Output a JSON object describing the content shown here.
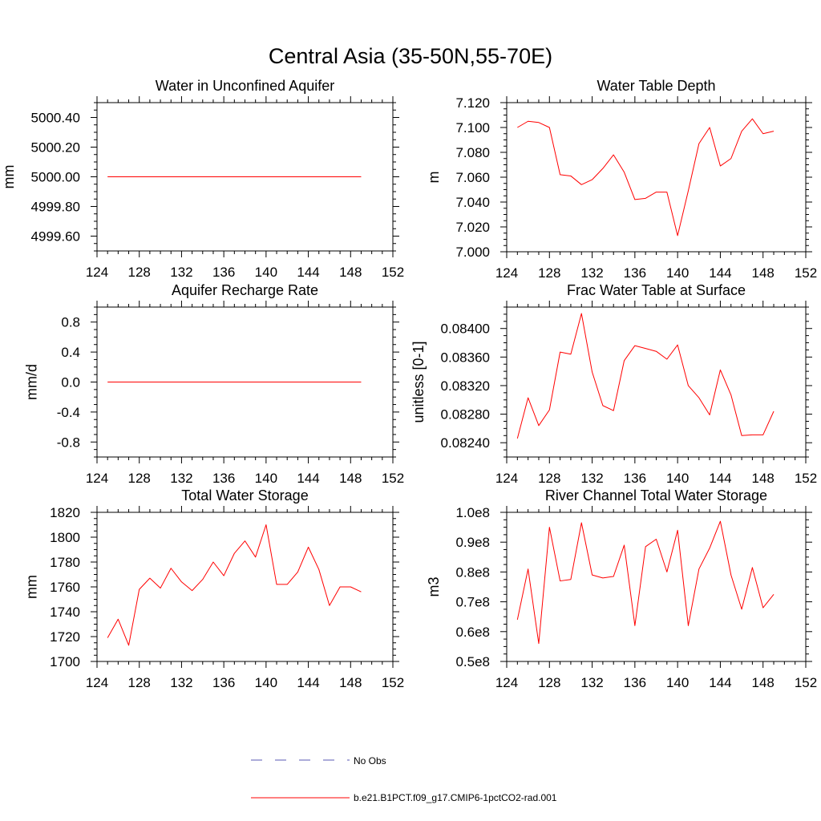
{
  "figure_title": "Central Asia (35-50N,55-70E)",
  "legend": [
    {
      "label": "No Obs",
      "color": "#5a5ab4",
      "style": "dashed"
    },
    {
      "label": "b.e21.B1PCT.f09_g17.CMIP6-1pctCO2-rad.001",
      "color": "#ff0000",
      "style": "solid"
    }
  ],
  "chart_data": [
    {
      "type": "line",
      "title": "Water in Unconfined Aquifer",
      "xlabel": "",
      "ylabel": "mm",
      "xlim": [
        124,
        152
      ],
      "ylim": [
        4999.5,
        5000.5
      ],
      "xticks": [
        124,
        128,
        132,
        136,
        140,
        144,
        148,
        152
      ],
      "yticks": [
        4999.6,
        4999.8,
        5000.0,
        5000.2,
        5000.4
      ],
      "ytick_labels": [
        "4999.60",
        "4999.80",
        "5000.00",
        "5000.20",
        "5000.40"
      ],
      "x": [
        125,
        126,
        127,
        128,
        129,
        130,
        131,
        132,
        133,
        134,
        135,
        136,
        137,
        138,
        139,
        140,
        141,
        142,
        143,
        144,
        145,
        146,
        147,
        148,
        149
      ],
      "series": [
        {
          "color": "#ff0000",
          "values": [
            5000,
            5000,
            5000,
            5000,
            5000,
            5000,
            5000,
            5000,
            5000,
            5000,
            5000,
            5000,
            5000,
            5000,
            5000,
            5000,
            5000,
            5000,
            5000,
            5000,
            5000,
            5000,
            5000,
            5000,
            5000
          ]
        }
      ]
    },
    {
      "type": "line",
      "title": "Water Table Depth",
      "xlabel": "",
      "ylabel": "m",
      "xlim": [
        124,
        152
      ],
      "ylim": [
        7.0,
        7.12
      ],
      "xticks": [
        124,
        128,
        132,
        136,
        140,
        144,
        148,
        152
      ],
      "yticks": [
        7.0,
        7.02,
        7.04,
        7.06,
        7.08,
        7.1,
        7.12
      ],
      "ytick_labels": [
        "7.000",
        "7.020",
        "7.040",
        "7.060",
        "7.080",
        "7.100",
        "7.120"
      ],
      "x": [
        125,
        126,
        127,
        128,
        129,
        130,
        131,
        132,
        133,
        134,
        135,
        136,
        137,
        138,
        139,
        140,
        141,
        142,
        143,
        144,
        145,
        146,
        147,
        148,
        149
      ],
      "series": [
        {
          "color": "#ff0000",
          "values": [
            7.1,
            7.105,
            7.104,
            7.1,
            7.062,
            7.061,
            7.054,
            7.058,
            7.067,
            7.078,
            7.064,
            7.042,
            7.043,
            7.048,
            7.048,
            7.013,
            7.049,
            7.087,
            7.1,
            7.069,
            7.075,
            7.097,
            7.107,
            7.095,
            7.097
          ]
        }
      ]
    },
    {
      "type": "line",
      "title": "Aquifer Recharge Rate",
      "xlabel": "",
      "ylabel": "mm/d",
      "xlim": [
        124,
        152
      ],
      "ylim": [
        -1.0,
        1.0
      ],
      "xticks": [
        124,
        128,
        132,
        136,
        140,
        144,
        148,
        152
      ],
      "yticks": [
        -0.8,
        -0.4,
        0.0,
        0.4,
        0.8
      ],
      "ytick_labels": [
        "-0.8",
        "-0.4",
        "0.0",
        "0.4",
        "0.8"
      ],
      "x": [
        125,
        126,
        127,
        128,
        129,
        130,
        131,
        132,
        133,
        134,
        135,
        136,
        137,
        138,
        139,
        140,
        141,
        142,
        143,
        144,
        145,
        146,
        147,
        148,
        149
      ],
      "series": [
        {
          "color": "#ff0000",
          "values": [
            0,
            0,
            0,
            0,
            0,
            0,
            0,
            0,
            0,
            0,
            0,
            0,
            0,
            0,
            0,
            0,
            0,
            0,
            0,
            0,
            0,
            0,
            0,
            0,
            0
          ]
        }
      ]
    },
    {
      "type": "line",
      "title": "Frac Water Table at Surface",
      "xlabel": "",
      "ylabel": "unitless [0-1]",
      "xlim": [
        124,
        152
      ],
      "ylim": [
        0.0822,
        0.0843
      ],
      "xticks": [
        124,
        128,
        132,
        136,
        140,
        144,
        148,
        152
      ],
      "yticks": [
        0.0824,
        0.0828,
        0.0832,
        0.0836,
        0.084
      ],
      "ytick_labels": [
        "0.08240",
        "0.08280",
        "0.08320",
        "0.08360",
        "0.08400"
      ],
      "x": [
        125,
        126,
        127,
        128,
        129,
        130,
        131,
        132,
        133,
        134,
        135,
        136,
        137,
        138,
        139,
        140,
        141,
        142,
        143,
        144,
        145,
        146,
        147,
        148,
        149
      ],
      "series": [
        {
          "color": "#ff0000",
          "values": [
            0.08246,
            0.08303,
            0.08264,
            0.08286,
            0.08367,
            0.08364,
            0.08421,
            0.08339,
            0.08292,
            0.08285,
            0.08355,
            0.08376,
            0.08372,
            0.08368,
            0.08357,
            0.08377,
            0.0832,
            0.08303,
            0.08279,
            0.08342,
            0.08307,
            0.0825,
            0.08251,
            0.08251,
            0.08284
          ]
        }
      ]
    },
    {
      "type": "line",
      "title": "Total Water Storage",
      "xlabel": "",
      "ylabel": "mm",
      "xlim": [
        124,
        152
      ],
      "ylim": [
        1700,
        1820
      ],
      "xticks": [
        124,
        128,
        132,
        136,
        140,
        144,
        148,
        152
      ],
      "yticks": [
        1700,
        1720,
        1740,
        1760,
        1780,
        1800,
        1820
      ],
      "ytick_labels": [
        "1700",
        "1720",
        "1740",
        "1760",
        "1780",
        "1800",
        "1820"
      ],
      "x": [
        125,
        126,
        127,
        128,
        129,
        130,
        131,
        132,
        133,
        134,
        135,
        136,
        137,
        138,
        139,
        140,
        141,
        142,
        143,
        144,
        145,
        146,
        147,
        148,
        149
      ],
      "series": [
        {
          "color": "#ff0000",
          "values": [
            1719,
            1734,
            1713,
            1758,
            1767,
            1759,
            1775,
            1764,
            1757,
            1766,
            1780,
            1769,
            1787,
            1797,
            1784,
            1810,
            1762,
            1762,
            1772,
            1792,
            1774,
            1745,
            1760,
            1760,
            1756
          ]
        }
      ]
    },
    {
      "type": "line",
      "title": "River Channel Total Water Storage",
      "xlabel": "",
      "ylabel": "m3",
      "xlim": [
        124,
        152
      ],
      "ylim": [
        50000000,
        100000000
      ],
      "xticks": [
        124,
        128,
        132,
        136,
        140,
        144,
        148,
        152
      ],
      "yticks": [
        50000000,
        60000000,
        70000000,
        80000000,
        90000000,
        100000000
      ],
      "ytick_labels": [
        "0.5e8",
        "0.6e8",
        "0.7e8",
        "0.8e8",
        "0.9e8",
        "1.0e8"
      ],
      "x": [
        125,
        126,
        127,
        128,
        129,
        130,
        131,
        132,
        133,
        134,
        135,
        136,
        137,
        138,
        139,
        140,
        141,
        142,
        143,
        144,
        145,
        146,
        147,
        148,
        149
      ],
      "series": [
        {
          "color": "#ff0000",
          "values": [
            64000000,
            81000000,
            56000000,
            95000000,
            77000000,
            77500000,
            96500000,
            79000000,
            78000000,
            78500000,
            89000000,
            62000000,
            88500000,
            91000000,
            80000000,
            94000000,
            62000000,
            81000000,
            88000000,
            97000000,
            79000000,
            67500000,
            81500000,
            68000000,
            72500000
          ]
        }
      ]
    }
  ]
}
